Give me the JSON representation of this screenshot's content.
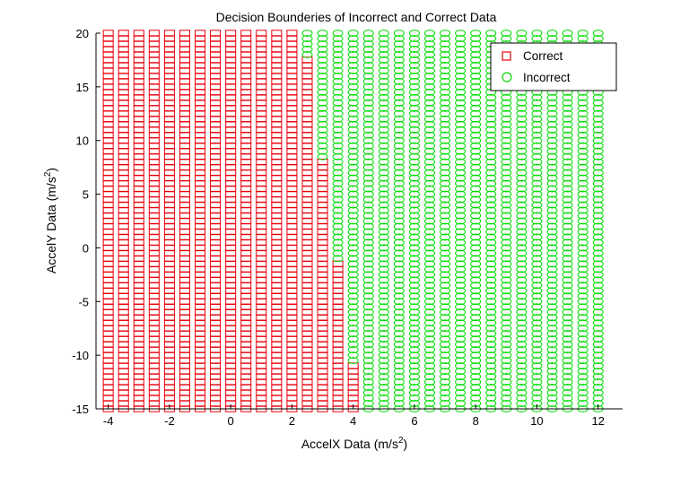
{
  "chart_data": {
    "type": "scatter",
    "title": "Decision Bounderies of Incorrect and Correct Data",
    "xlabel": "AccelX Data (m/s^2)",
    "ylabel": "AccelY Data (m/s^2)",
    "xlabel_base": "AccelX Data (m/s",
    "ylabel_base": "AccelY Data (m/s",
    "label_sup": "2",
    "label_close": ")",
    "xlim": [
      -4.4,
      12.8
    ],
    "ylim": [
      -15,
      20
    ],
    "xticks": [
      -4,
      -2,
      0,
      2,
      4,
      6,
      8,
      10,
      12
    ],
    "yticks": [
      -15,
      -10,
      -5,
      0,
      5,
      10,
      15,
      20
    ],
    "grid": false,
    "legend_position": "top-right",
    "grid_x": {
      "start": -4,
      "stop": 12,
      "step": 0.5
    },
    "grid_y": {
      "start": -15,
      "stop": 20,
      "step": 0.5
    },
    "boundary": [
      {
        "x": 2.5,
        "y_above": 17.5
      },
      {
        "x": 3.0,
        "y_above": 8.0
      },
      {
        "x": 3.5,
        "y_above": -1.5
      },
      {
        "x": 4.0,
        "y_above": -11.0
      }
    ],
    "boundary_rule": "x <= 2.0 correct; x >= 4.5 incorrect; between: correct if y <= y_above",
    "series": [
      {
        "name": "Correct",
        "marker": "square",
        "color": "#e8000b"
      },
      {
        "name": "Incorrect",
        "marker": "circle",
        "color": "#00dc00"
      }
    ]
  }
}
